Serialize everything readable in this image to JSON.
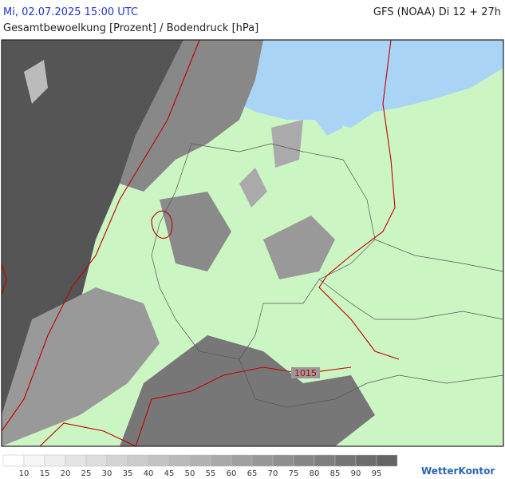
{
  "header": {
    "datetime": "Mi, 02.07.2025 15:00 UTC",
    "model": "GFS (NOAA) Di 12 + 27h",
    "subtitle": "Gesamtbewoelkung [Prozent] / Bodendruck [hPa]"
  },
  "map": {
    "isobar_labels": [
      "1015"
    ]
  },
  "legend": {
    "labels": [
      10,
      15,
      20,
      25,
      30,
      35,
      40,
      45,
      50,
      55,
      60,
      65,
      70,
      75,
      80,
      85,
      90,
      95
    ]
  },
  "brand": "WetterKontor"
}
